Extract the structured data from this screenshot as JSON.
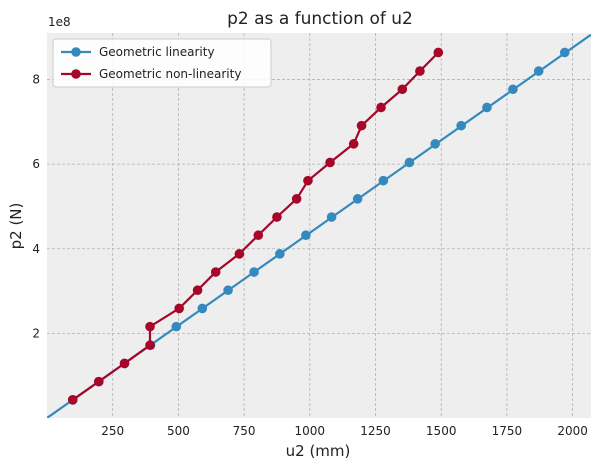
{
  "chart_data": {
    "type": "line",
    "title": "p2 as a function of u2",
    "xlabel": "u2 (mm)",
    "ylabel": "p2 (N)",
    "y_offset_label": "1e8",
    "xlim": [
      0,
      2070
    ],
    "ylim": [
      0,
      910000000
    ],
    "y_scale_factor": 100000000,
    "xticks": [
      250,
      500,
      750,
      1000,
      1250,
      1500,
      1750,
      2000
    ],
    "yticks": [
      200000000,
      400000000,
      600000000,
      800000000
    ],
    "xtick_labels": [
      "250",
      "500",
      "750",
      "1000",
      "1250",
      "1500",
      "1750",
      "2000"
    ],
    "ytick_labels": [
      "2",
      "4",
      "6",
      "8"
    ],
    "grid": true,
    "legend_position": "top-left",
    "series": [
      {
        "name": "Geometric linearity",
        "color": "#348ABD",
        "extended_line": {
          "x": [
            0,
            2070
          ],
          "y": [
            0,
            906000000
          ]
        },
        "x": [
          98,
          197,
          295,
          394,
          492,
          591,
          689,
          788,
          886,
          985,
          1083,
          1182,
          1280,
          1379,
          1477,
          1576,
          1674,
          1773,
          1871,
          1970
        ],
        "y": [
          43000000,
          86000000,
          129000000,
          172000000,
          216000000,
          259000000,
          302000000,
          345000000,
          388000000,
          432000000,
          475000000,
          518000000,
          561000000,
          604000000,
          648000000,
          691000000,
          734000000,
          777000000,
          820000000,
          864000000
        ]
      },
      {
        "name": "Geometric non-linearity",
        "color": "#A60628",
        "x": [
          98,
          197,
          295,
          392,
          392,
          503,
          573,
          642,
          732,
          804,
          875,
          950,
          993,
          1077,
          1167,
          1197,
          1271,
          1352,
          1419,
          1489
        ],
        "y": [
          43000000,
          86000000,
          129000000,
          172000000,
          216000000,
          259000000,
          302000000,
          345000000,
          388000000,
          432000000,
          475000000,
          518000000,
          561000000,
          604000000,
          648000000,
          691000000,
          734000000,
          777000000,
          820000000,
          864000000
        ]
      }
    ]
  }
}
